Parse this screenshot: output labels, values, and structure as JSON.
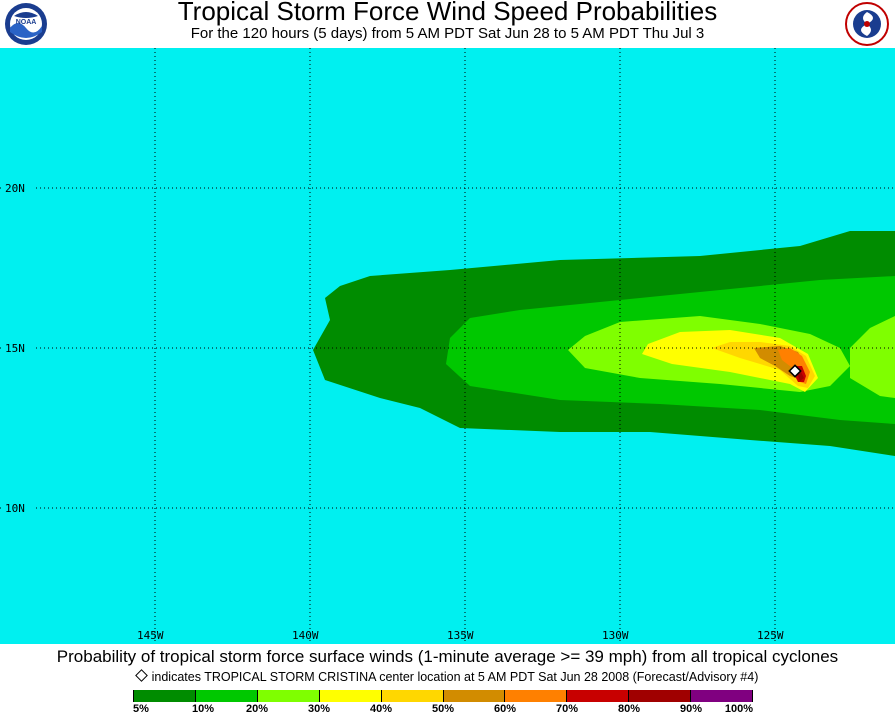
{
  "header": {
    "title": "Tropical Storm Force Wind Speed Probabilities",
    "subtitle": "For the 120 hours (5 days) from 5 AM PDT Sat Jun 28 to 5 AM PDT Thu Jul 3"
  },
  "logos": {
    "left": {
      "name": "noaa-logo",
      "text": "NOAA"
    },
    "right": {
      "name": "national-weather-service-logo",
      "text": "NATIONAL WEATHER SERVICE"
    }
  },
  "map": {
    "ocean_color": "#00f0f0",
    "lat_labels": [
      "20N",
      "15N",
      "10N"
    ],
    "lon_labels": [
      "145W",
      "140W",
      "135W",
      "130W",
      "125W"
    ],
    "storm_marker": "tropical-storm-cristina-center"
  },
  "footer": {
    "line1": "Probability of tropical storm force surface winds (1-minute average >= 39 mph) from all tropical cyclones",
    "line2": "indicates TROPICAL STORM CRISTINA center location at 5 AM PDT Sat Jun 28 2008 (Forecast/Advisory #4)"
  },
  "legend": {
    "colors": [
      "#008c00",
      "#00c800",
      "#7fff00",
      "#ffff00",
      "#ffd700",
      "#d28c00",
      "#ff8000",
      "#c80000",
      "#a00000",
      "#800080"
    ],
    "labels": [
      "5%",
      "10%",
      "20%",
      "30%",
      "40%",
      "50%",
      "60%",
      "70%",
      "80%",
      "90%",
      "100%"
    ]
  }
}
